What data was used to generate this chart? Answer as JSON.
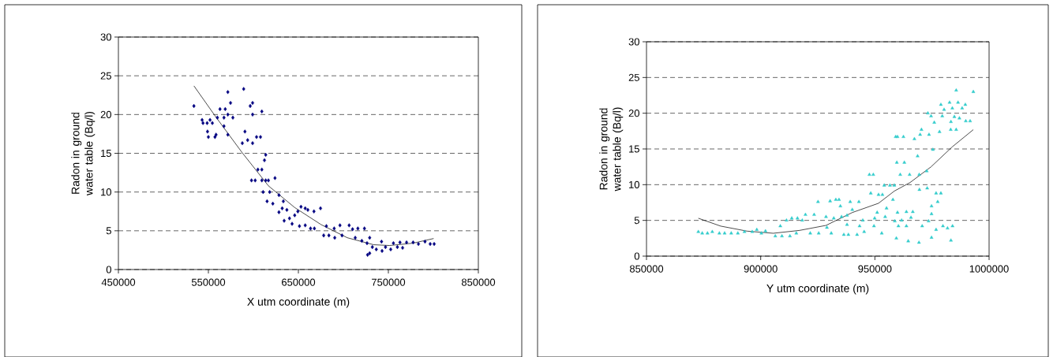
{
  "chart_data": [
    {
      "type": "scatter",
      "xlabel": "X utm coordinate (m)",
      "ylabel": "Radon in ground water table (Bq/l)",
      "xlim": [
        450000,
        850000
      ],
      "ylim": [
        0,
        30
      ],
      "xticks": [
        450000,
        550000,
        650000,
        750000,
        850000
      ],
      "yticks": [
        0,
        5,
        10,
        15,
        20,
        25,
        30
      ],
      "grid": "y",
      "series": [
        {
          "marker": "diamond",
          "color": "#000080",
          "x": [
            533900,
            543000,
            544000,
            548600,
            549000,
            550000,
            551800,
            554400,
            557300,
            558500,
            560000,
            562900,
            567300,
            567300,
            568700,
            571600,
            571600,
            571600,
            574600,
            577200,
            587700,
            589200,
            590600,
            593600,
            596500,
            599100,
            599100,
            599100,
            597900,
            602000,
            603500,
            607900,
            609400,
            613700,
            612300,
            605000,
            609400,
            609400,
            613700,
            616700,
            610800,
            618100,
            615200,
            624000,
            621600,
            628400,
            633300,
            628400,
            632000,
            634200,
            637200,
            640100,
            643000,
            645900,
            649400,
            651200,
            652900,
            657600,
            660500,
            667300,
            674600,
            657600,
            663500,
            667800,
            678100,
            683900,
            690400,
            681100,
            689800,
            696200,
            698500,
            706400,
            710200,
            716100,
            723400,
            713200,
            720500,
            726300,
            729200,
            726900,
            729200,
            732200,
            736600,
            742400,
            743000,
            746800,
            752600,
            755600,
            760000,
            762900,
            765800,
            770200,
            777500,
            783400,
            790700,
            796500,
            800900
          ],
          "values": [
            21.1,
            19.3,
            18.9,
            18.9,
            17.8,
            17.1,
            19.3,
            18.9,
            17.1,
            17.4,
            19.6,
            20.7,
            19.6,
            18.5,
            20.7,
            22.9,
            20.0,
            17.4,
            21.5,
            19.6,
            16.3,
            23.3,
            17.8,
            16.7,
            21.1,
            21.5,
            20.0,
            16.3,
            11.5,
            11.5,
            17.1,
            17.1,
            20.4,
            14.8,
            14.1,
            12.9,
            12.9,
            11.5,
            11.5,
            11.5,
            10.0,
            10.0,
            8.8,
            11.8,
            8.5,
            9.6,
            8.8,
            7.4,
            7.9,
            6.3,
            7.7,
            6.6,
            5.9,
            7.0,
            7.5,
            5.6,
            8.1,
            7.9,
            7.7,
            7.5,
            7.9,
            5.7,
            5.3,
            5.3,
            4.4,
            4.4,
            4.1,
            5.6,
            5.3,
            5.7,
            4.4,
            5.7,
            5.2,
            5.3,
            5.3,
            4.1,
            3.7,
            3.4,
            4.1,
            1.9,
            2.1,
            2.9,
            2.6,
            3.6,
            2.4,
            2.9,
            2.6,
            3.4,
            2.9,
            3.5,
            2.8,
            3.5,
            3.5,
            3.3,
            3.6,
            3.3,
            3.3
          ]
        },
        {
          "type": "line",
          "marker": "none",
          "line_style": "solid",
          "color": "#000000",
          "x": [
            533900,
            558200,
            587400,
            616700,
            645900,
            675200,
            704400,
            733600,
            751200,
            777500,
            800300
          ],
          "values": [
            23.7,
            19.7,
            15.1,
            10.8,
            8.0,
            5.8,
            4.1,
            3.2,
            3.1,
            3.4,
            4.0
          ]
        }
      ]
    },
    {
      "type": "scatter",
      "xlabel": "Y  utm coordinate (m)",
      "ylabel": "Radon in ground water table (Bq/l)",
      "xlim": [
        850000,
        1000000
      ],
      "ylim": [
        0,
        30
      ],
      "xticks": [
        850000,
        900000,
        950000,
        1000000
      ],
      "yticks": [
        0,
        5,
        10,
        15,
        20,
        25,
        30
      ],
      "grid": "y",
      "series": [
        {
          "marker": "triangle",
          "color": "#33cccc",
          "x": [
            872700,
            874400,
            876700,
            878800,
            881900,
            884200,
            887100,
            890000,
            892900,
            896300,
            898300,
            900300,
            902100,
            906400,
            908600,
            909300,
            911300,
            912800,
            913600,
            915600,
            916100,
            918200,
            919600,
            921700,
            923400,
            925100,
            925400,
            928600,
            929000,
            930400,
            930900,
            932000,
            932900,
            934300,
            934900,
            935400,
            936400,
            937800,
            938400,
            939200,
            937800,
            940100,
            942200,
            943000,
            943300,
            944700,
            945300,
            947600,
            949300,
            948200,
            949600,
            949900,
            951000,
            951600,
            953000,
            953300,
            954100,
            954500,
            955100,
            956600,
            957900,
            958500,
            958700,
            959100,
            959400,
            959900,
            959600,
            959900,
            960300,
            961100,
            961700,
            962500,
            962900,
            963800,
            963800,
            964600,
            965200,
            965800,
            966600,
            967300,
            968700,
            969400,
            969300,
            969500,
            969800,
            970400,
            970700,
            972700,
            972900,
            973200,
            973500,
            973700,
            974600,
            974800,
            974800,
            974800,
            975400,
            976000,
            976800,
            976800,
            977500,
            978300,
            978900,
            978900,
            979500,
            979800,
            980300,
            981800,
            982700,
            983200,
            983300,
            983300,
            983900,
            984000,
            984800,
            985600,
            985600,
            986400,
            987000,
            988200,
            989600,
            989800,
            991700,
            993100
          ],
          "values": [
            3.4,
            3.2,
            3.2,
            3.4,
            3.2,
            3.2,
            3.2,
            3.2,
            3.4,
            3.4,
            3.7,
            3.2,
            3.5,
            2.8,
            4.2,
            2.8,
            5.0,
            2.8,
            5.3,
            3.2,
            5.3,
            5.0,
            5.8,
            3.2,
            5.8,
            7.6,
            3.2,
            5.5,
            4.0,
            7.7,
            3.2,
            5.3,
            7.9,
            7.9,
            7.0,
            5.5,
            3.0,
            5.7,
            3.0,
            7.6,
            4.4,
            6.5,
            3.0,
            7.6,
            4.2,
            5.0,
            3.4,
            11.4,
            11.4,
            8.8,
            4.2,
            5.3,
            6.1,
            8.6,
            3.2,
            8.6,
            9.9,
            5.5,
            6.7,
            9.9,
            7.9,
            9.9,
            4.9,
            16.7,
            2.5,
            16.7,
            13.1,
            6.1,
            4.2,
            11.4,
            5.0,
            16.7,
            13.1,
            4.2,
            6.2,
            2.1,
            11.4,
            5.4,
            6.2,
            16.4,
            14.0,
            11.4,
            1.9,
            9.3,
            17.0,
            17.7,
            4.2,
            11.9,
            9.5,
            20.0,
            4.9,
            17.0,
            19.6,
            2.6,
            5.9,
            7.0,
            14.9,
            18.7,
            3.7,
            8.8,
            7.6,
            17.4,
            21.2,
            8.8,
            19.6,
            4.2,
            20.5,
            3.9,
            21.5,
            17.7,
            2.2,
            18.8,
            20.7,
            4.2,
            19.5,
            23.2,
            17.7,
            21.5,
            19.3,
            20.7,
            21.2,
            18.9,
            18.9,
            23.0
          ]
        },
        {
          "type": "line",
          "marker": "none",
          "line_style": "solid",
          "color": "#000000",
          "x": [
            872700,
            882500,
            894000,
            905500,
            917000,
            928600,
            940100,
            951600,
            958500,
            965400,
            974600,
            983900,
            993100
          ],
          "values": [
            5.3,
            4.2,
            3.5,
            3.2,
            3.6,
            4.3,
            6.1,
            7.4,
            9.1,
            10.3,
            12.5,
            15.3,
            17.7
          ]
        }
      ]
    }
  ]
}
